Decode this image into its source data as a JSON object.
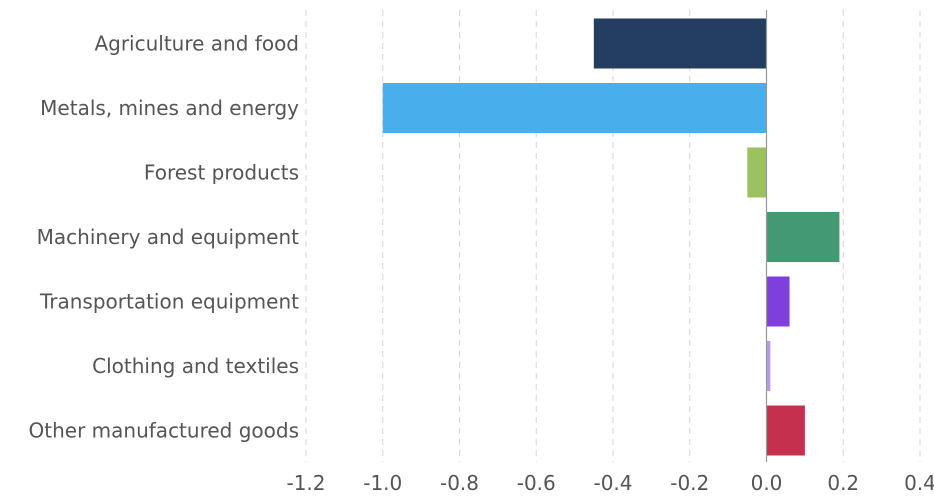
{
  "chart_data": {
    "type": "bar",
    "orientation": "horizontal",
    "categories": [
      "Agriculture and food",
      "Metals, mines and energy",
      "Forest products",
      "Machinery and equipment",
      "Transportation equipment",
      "Clothing and textiles",
      "Other manufactured goods"
    ],
    "values": [
      -0.45,
      -1.0,
      -0.05,
      0.19,
      0.06,
      0.01,
      0.1
    ],
    "colors": [
      "#233e60",
      "#49aeec",
      "#9bc25e",
      "#439a72",
      "#7f3fdc",
      "#b89be8",
      "#c4304d"
    ],
    "xlim": [
      -1.2,
      0.4
    ],
    "xticks": [
      "-1.2",
      "-1.0",
      "-0.8",
      "-0.6",
      "-0.4",
      "-0.2",
      "0.0",
      "0.2",
      "0.4"
    ],
    "xtick_values": [
      -1.2,
      -1.0,
      -0.8,
      -0.6,
      -0.4,
      -0.2,
      0.0,
      0.2,
      0.4
    ],
    "grid": "vertical dashed",
    "legend": "none"
  }
}
